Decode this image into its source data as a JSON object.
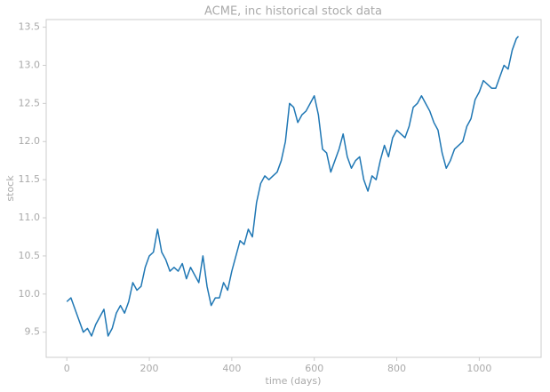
{
  "chart_data": {
    "type": "line",
    "title": "ACME, inc historical stock data",
    "x_label": "time (days)",
    "y_label": "stock",
    "x": [
      0,
      10,
      20,
      30,
      40,
      50,
      60,
      70,
      80,
      90,
      100,
      110,
      120,
      130,
      140,
      150,
      160,
      170,
      180,
      190,
      200,
      210,
      220,
      230,
      240,
      250,
      260,
      270,
      280,
      290,
      300,
      310,
      320,
      330,
      340,
      350,
      360,
      370,
      380,
      390,
      400,
      410,
      420,
      430,
      440,
      450,
      460,
      470,
      480,
      490,
      500,
      510,
      520,
      530,
      540,
      550,
      560,
      570,
      580,
      590,
      600,
      610,
      620,
      630,
      640,
      650,
      660,
      670,
      680,
      690,
      700,
      710,
      720,
      730,
      740,
      750,
      760,
      770,
      780,
      790,
      800,
      810,
      820,
      830,
      840,
      850,
      860,
      870,
      880,
      890,
      900,
      910,
      920,
      930,
      940,
      950,
      960,
      970,
      980,
      990,
      1000,
      1010,
      1020,
      1030,
      1040,
      1050,
      1060,
      1070,
      1080,
      1090,
      1095
    ],
    "series": [
      {
        "name": "stock",
        "color": "#1f77b4",
        "values": [
          9.9,
          9.95,
          9.8,
          9.65,
          9.5,
          9.55,
          9.45,
          9.6,
          9.7,
          9.8,
          9.45,
          9.55,
          9.75,
          9.85,
          9.75,
          9.9,
          10.15,
          10.05,
          10.1,
          10.35,
          10.5,
          10.55,
          10.85,
          10.55,
          10.45,
          10.3,
          10.35,
          10.3,
          10.4,
          10.2,
          10.35,
          10.25,
          10.15,
          10.5,
          10.1,
          9.85,
          9.95,
          9.95,
          10.15,
          10.05,
          10.3,
          10.5,
          10.7,
          10.65,
          10.85,
          10.75,
          11.2,
          11.45,
          11.55,
          11.5,
          11.55,
          11.6,
          11.75,
          12.0,
          12.5,
          12.45,
          12.25,
          12.35,
          12.4,
          12.5,
          12.6,
          12.35,
          11.9,
          11.85,
          11.6,
          11.75,
          11.9,
          12.1,
          11.8,
          11.65,
          11.75,
          11.8,
          11.5,
          11.35,
          11.55,
          11.5,
          11.75,
          11.95,
          11.8,
          12.05,
          12.15,
          12.1,
          12.05,
          12.2,
          12.45,
          12.5,
          12.6,
          12.5,
          12.4,
          12.25,
          12.15,
          11.85,
          11.65,
          11.75,
          11.9,
          11.95,
          12.0,
          12.2,
          12.3,
          12.55,
          12.65,
          12.8,
          12.75,
          12.7,
          12.7,
          12.85,
          13.0,
          12.95,
          13.2,
          13.35,
          13.38
        ]
      }
    ],
    "xlim": [
      -50,
      1150
    ],
    "ylim": [
      9.17,
      13.6
    ],
    "xticks": [
      0,
      200,
      400,
      600,
      800,
      1000
    ],
    "yticks": [
      9.5,
      {
        "value": 10,
        "label": "10.0"
      },
      10.5,
      {
        "value": 11,
        "label": "11.0"
      },
      11.5,
      {
        "value": 12,
        "label": "12.0"
      },
      12.5,
      {
        "value": 13,
        "label": "13.0"
      },
      13.5
    ],
    "grid": false
  }
}
